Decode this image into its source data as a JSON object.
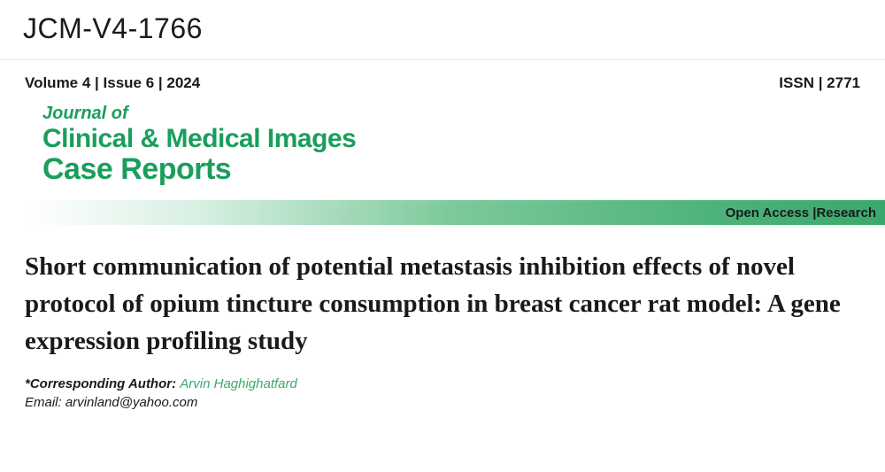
{
  "header": {
    "docId": "JCM-V4-1766",
    "volumeIssue": "Volume 4 | Issue 6 | 2024",
    "issn": "ISSN |  2771"
  },
  "journal": {
    "prefix": "Journal of",
    "name": "Clinical & Medical Images",
    "subtitle": "Case Reports"
  },
  "accessBar": {
    "text": "Open Access |Research",
    "gradient": {
      "from": "#ffffff",
      "mid1": "#d8f0e3",
      "mid2": "#7cc99a",
      "mid3": "#4db37a",
      "to": "#3aa86c"
    }
  },
  "article": {
    "title": "Short communication of potential metastasis inhibition effects of novel protocol of opium tincture consumption in breast cancer rat model: A gene expression profiling study"
  },
  "author": {
    "correspondingLabel": "*Corresponding Author: ",
    "name": "Arvin Haghighatfard",
    "emailLabel": "Email: ",
    "email": "arvinland@yahoo.com"
  },
  "colors": {
    "brandGreen": "#1a9e5c",
    "authorGreen": "#3aa86c",
    "textDark": "#1a1a1a",
    "background": "#ffffff",
    "border": "#e5e5e5"
  },
  "typography": {
    "docId_fontsize": 32,
    "volumeIssue_fontsize": 17,
    "journalPrefix_fontsize": 20,
    "journalName_fontsize": 30,
    "journalSubtitle_fontsize": 34,
    "articleTitle_fontsize": 29,
    "author_fontsize": 15
  }
}
